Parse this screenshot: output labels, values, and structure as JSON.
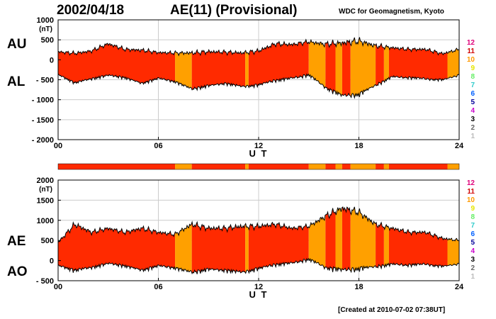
{
  "header": {
    "date": "2002/04/18",
    "title": "AE(11) (Provisional)",
    "source": "WDC for Geomagnetism, Kyoto",
    "created": "[Created at 2010-07-02 07:38UT]"
  },
  "legend": {
    "levels": [
      "12",
      "11",
      "10",
      "9",
      "8",
      "7",
      "6",
      "5",
      "4",
      "3",
      "2",
      "1"
    ],
    "colors": [
      "#e0007a",
      "#d00000",
      "#ff9900",
      "#e6e600",
      "#66ee66",
      "#33cccc",
      "#0060ff",
      "#000099",
      "#cc00cc",
      "#000000",
      "#666666",
      "#bbbbbb"
    ]
  },
  "colors": {
    "level11": "#ff2a00",
    "level10": "#ffa000",
    "outline": "#000000",
    "grid": "#cccccc"
  },
  "station_bar": {
    "segments": [
      {
        "start": 0,
        "end": 7,
        "level": 11
      },
      {
        "start": 7,
        "end": 8,
        "level": 10
      },
      {
        "start": 8,
        "end": 11.2,
        "level": 11
      },
      {
        "start": 11.2,
        "end": 11.4,
        "level": 10
      },
      {
        "start": 11.4,
        "end": 15,
        "level": 11
      },
      {
        "start": 15,
        "end": 16,
        "level": 10
      },
      {
        "start": 16,
        "end": 16.6,
        "level": 11
      },
      {
        "start": 16.6,
        "end": 17,
        "level": 10
      },
      {
        "start": 17,
        "end": 17.5,
        "level": 11
      },
      {
        "start": 17.5,
        "end": 19,
        "level": 10
      },
      {
        "start": 19,
        "end": 19.5,
        "level": 11
      },
      {
        "start": 19.5,
        "end": 19.8,
        "level": 10
      },
      {
        "start": 19.8,
        "end": 23.3,
        "level": 11
      },
      {
        "start": 23.3,
        "end": 24,
        "level": 10
      }
    ]
  },
  "chart_data": [
    {
      "type": "area",
      "title": "AU / AL",
      "xlabel": "U T",
      "ylabel": "(nT)",
      "series_labels": [
        "AU",
        "AL"
      ],
      "xlim": [
        0,
        24
      ],
      "ylim": [
        -2000,
        1000
      ],
      "xticks": [
        "00",
        "06",
        "12",
        "18",
        "24"
      ],
      "yticks": [
        "1000",
        "500",
        "0",
        "- 500",
        "- 1000",
        "- 1500",
        "- 2000"
      ],
      "x": [
        0,
        1,
        2,
        3,
        4,
        5,
        6,
        7,
        8,
        9,
        10,
        11,
        12,
        13,
        14,
        15,
        16,
        17,
        18,
        19,
        20,
        21,
        22,
        23,
        24
      ],
      "series": [
        {
          "name": "AU",
          "values": [
            200,
            160,
            220,
            400,
            260,
            240,
            180,
            170,
            170,
            200,
            190,
            170,
            220,
            400,
            380,
            450,
            390,
            420,
            470,
            350,
            300,
            260,
            260,
            150,
            260
          ]
        },
        {
          "name": "AL",
          "values": [
            -350,
            -550,
            -450,
            -360,
            -420,
            -560,
            -440,
            -520,
            -700,
            -620,
            -560,
            -640,
            -600,
            -480,
            -430,
            -350,
            -650,
            -850,
            -820,
            -600,
            -400,
            -420,
            -450,
            -480,
            -360
          ]
        }
      ]
    },
    {
      "type": "area",
      "title": "AE / AO",
      "xlabel": "U T",
      "ylabel": "(nT)",
      "series_labels": [
        "AE",
        "AO"
      ],
      "xlim": [
        0,
        24
      ],
      "ylim": [
        -500,
        2000
      ],
      "xticks": [
        "00",
        "06",
        "12",
        "18",
        "24"
      ],
      "yticks": [
        "2000",
        "1500",
        "1000",
        "500",
        "0",
        "- 500"
      ],
      "x": [
        0,
        1,
        2,
        3,
        4,
        5,
        6,
        7,
        8,
        9,
        10,
        11,
        12,
        13,
        14,
        15,
        16,
        17,
        18,
        19,
        20,
        21,
        22,
        23,
        24
      ],
      "series": [
        {
          "name": "AE",
          "values": [
            450,
            900,
            700,
            800,
            700,
            800,
            700,
            650,
            900,
            800,
            800,
            850,
            850,
            900,
            800,
            850,
            1100,
            1300,
            1200,
            900,
            800,
            700,
            700,
            550,
            500
          ]
        },
        {
          "name": "AO",
          "values": [
            -100,
            -200,
            -140,
            -40,
            -100,
            -200,
            -100,
            -150,
            -250,
            -180,
            -200,
            -250,
            -160,
            -60,
            -30,
            60,
            -120,
            -180,
            -150,
            -110,
            -60,
            -80,
            -60,
            -120,
            -60
          ]
        }
      ]
    }
  ]
}
